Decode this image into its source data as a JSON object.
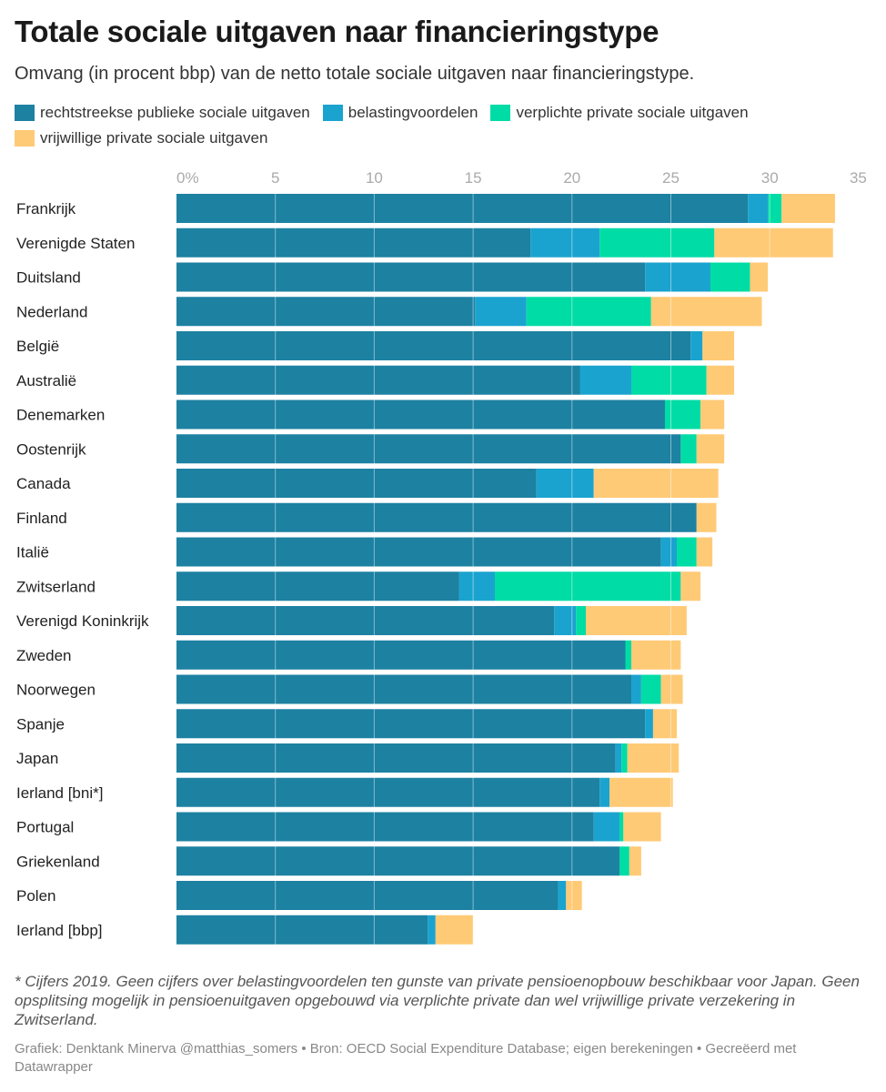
{
  "title": "Totale sociale uitgaven naar financieringstype",
  "subtitle": "Omvang (in procent bbp) van de netto totale sociale uitgaven naar financieringstype.",
  "footnote": "* Cijfers 2019. Geen cijfers over belastingvoordelen ten gunste van private pensioenopbouw beschikbaar voor Japan. Geen opsplitsing mogelijk in pensioenuitgaven opgebouwd via verplichte private dan wel vrijwillige private verzekering in Zwitserland.",
  "credit": "Grafiek: Denktank Minerva @matthias_somers • Bron: OECD Social Expenditure Database; eigen berekeningen • Gecreëerd met Datawrapper",
  "chart_data": {
    "type": "bar",
    "orientation": "horizontal",
    "stacked": true,
    "xlim": [
      0,
      35
    ],
    "ticks": [
      0,
      5,
      10,
      15,
      20,
      25,
      30,
      35
    ],
    "tick_labels": [
      "0%",
      "5",
      "10",
      "15",
      "20",
      "25",
      "30",
      "35"
    ],
    "grid": true,
    "legend_position": "top",
    "categories": [
      "Frankrijk",
      "Verenigde Staten",
      "Duitsland",
      "Nederland",
      "België",
      "Australië",
      "Denemarken",
      "Oostenrijk",
      "Canada",
      "Finland",
      "Italië",
      "Zwitserland",
      "Verenigd Koninkrijk",
      "Zweden",
      "Noorwegen",
      "Spanje",
      "Japan",
      "Ierland [bni*]",
      "Portugal",
      "Griekenland",
      "Polen",
      "Ierland [bbp]"
    ],
    "series": [
      {
        "name": "rechtstreekse publieke sociale uitgaven",
        "color": "#1d81a2",
        "values": [
          28.9,
          17.9,
          23.7,
          15.1,
          26.0,
          20.4,
          24.7,
          25.5,
          18.2,
          26.3,
          24.5,
          14.3,
          19.1,
          22.7,
          23.0,
          23.7,
          22.2,
          21.4,
          21.1,
          22.4,
          19.3,
          12.7
        ]
      },
      {
        "name": "belastingvoordelen",
        "color": "#1ba3cf",
        "values": [
          1.0,
          3.5,
          3.3,
          2.6,
          0.6,
          2.6,
          0,
          0,
          2.9,
          0,
          0.8,
          1.8,
          1.1,
          0,
          0.5,
          0.4,
          0.3,
          0.5,
          1.3,
          0,
          0.4,
          0.4
        ]
      },
      {
        "name": "verplichte private sociale uitgaven",
        "color": "#00dca6",
        "values": [
          0.7,
          5.8,
          2.0,
          6.3,
          0,
          3.8,
          1.8,
          0.8,
          0,
          0,
          1.0,
          9.4,
          0.5,
          0.3,
          1.0,
          0,
          0.3,
          0,
          0.2,
          0.5,
          0,
          0
        ]
      },
      {
        "name": "vrijwillige private sociale uitgaven",
        "color": "#ffca76",
        "values": [
          2.7,
          6.0,
          0.9,
          5.6,
          1.6,
          1.4,
          1.2,
          1.4,
          6.3,
          1.0,
          0.8,
          1.0,
          5.1,
          2.5,
          1.1,
          1.2,
          2.6,
          3.2,
          1.9,
          0.6,
          0.8,
          1.9
        ]
      }
    ]
  }
}
